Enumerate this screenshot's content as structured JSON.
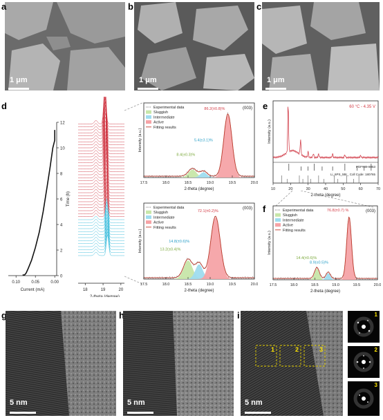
{
  "panel_labels": {
    "a": "a",
    "b": "b",
    "c": "c",
    "d": "d",
    "e": "e",
    "f": "f",
    "g": "g",
    "h": "h",
    "i": "i"
  },
  "scale_bars": {
    "sem": "1 μm",
    "tem": "5 nm"
  },
  "fft_labels": [
    "1",
    "2",
    "3"
  ],
  "box_labels": [
    "1",
    "2",
    "3"
  ],
  "colors": {
    "sluggish": "#c7e6a9",
    "intermediate": "#9fdcef",
    "active": "#f6a3a6",
    "fit": "#c0392b",
    "exp": "#7a7a7a",
    "cyan": "#29b6d8",
    "red": "#cc2936"
  },
  "chart_data": [
    {
      "id": "d-left",
      "type": "line",
      "xlabel": "Current (mA)",
      "ylabel": "Time (h)",
      "xticks": [
        "0.10",
        "0.05",
        "0.00"
      ],
      "yticks": [
        "0",
        "2",
        "4",
        "6",
        "8",
        "10",
        "12"
      ],
      "xlim": [
        0.12,
        -0.005
      ],
      "ylim": [
        0,
        12
      ],
      "x": [
        0.0,
        0.0,
        0.005,
        0.012,
        0.02,
        0.03,
        0.04,
        0.05,
        0.06,
        0.068,
        0.074,
        0.078,
        0.08,
        0.082,
        0.083
      ],
      "y": [
        11.4,
        10.6,
        10.0,
        8.5,
        6.9,
        5.0,
        3.4,
        2.2,
        1.2,
        0.6,
        0.2,
        0.05,
        0.05,
        0.05,
        0.05
      ]
    },
    {
      "id": "d-mid",
      "type": "line",
      "xlabel": "2-theta (degree)",
      "xticks": [
        "18",
        "19",
        "20"
      ],
      "xlim": [
        17.6,
        20.2
      ],
      "n_cyan": 13,
      "n_red": 32
    },
    {
      "id": "d-top",
      "type": "area",
      "xlabel": "2-theta (degree)",
      "ylabel": "Intensity (a.u.)",
      "xticks": [
        "17.5",
        "18.0",
        "18.5",
        "19.0",
        "19.5",
        "20.0"
      ],
      "xlim": [
        17.5,
        20.0
      ],
      "legend": [
        "Experimental data",
        "Sluggish",
        "Intermediate",
        "Active",
        "Fitting results"
      ],
      "tag": "(003)",
      "series": [
        {
          "name": "Sluggish",
          "center": 18.6,
          "width": 0.13,
          "height": 0.12
        },
        {
          "name": "Intermediate",
          "center": 18.85,
          "width": 0.11,
          "height": 0.08
        },
        {
          "name": "Active",
          "center": 19.4,
          "width": 0.13,
          "height": 0.95
        }
      ],
      "annotations": [
        {
          "text": "86.2(±0.8)%",
          "x": 19.1,
          "y": 1.03,
          "color": "red"
        },
        {
          "text": "5.4(±3.1)%",
          "x": 18.85,
          "y": 0.55,
          "color": "cyan"
        },
        {
          "text": "8.4(±0.3)%",
          "x": 18.45,
          "y": 0.33,
          "color": "green"
        }
      ]
    },
    {
      "id": "d-bottom",
      "type": "area",
      "xlabel": "2-theta (degree)",
      "ylabel": "Intensity (a.u.)",
      "xticks": [
        "17.5",
        "18.0",
        "18.5",
        "19.0",
        "19.5",
        "20.0"
      ],
      "xlim": [
        17.5,
        20.0
      ],
      "legend": [
        "Experimental data",
        "Sluggish",
        "Intermediate",
        "Active",
        "Fitting results"
      ],
      "tag": "(003)",
      "series": [
        {
          "name": "Sluggish",
          "center": 18.5,
          "width": 0.14,
          "height": 0.28
        },
        {
          "name": "Intermediate",
          "center": 18.75,
          "width": 0.12,
          "height": 0.22
        },
        {
          "name": "Active",
          "center": 19.12,
          "width": 0.15,
          "height": 0.92
        }
      ],
      "annotations": [
        {
          "text": "72.1(±0.2)%",
          "x": 18.95,
          "y": 1.0,
          "color": "red"
        },
        {
          "text": "14.8(±0.6)%",
          "x": 18.3,
          "y": 0.55,
          "color": "cyan"
        },
        {
          "text": "13.2(±0.4)%",
          "x": 18.1,
          "y": 0.43,
          "color": "green"
        }
      ]
    },
    {
      "id": "e",
      "type": "line",
      "title": "60 °C - 4.35 V",
      "xlabel": "2-theta (degree)",
      "ylabel": "Intensity (a.u.)",
      "xticks": [
        "10",
        "20",
        "30",
        "40",
        "50",
        "60",
        "70"
      ],
      "xlim": [
        10,
        70
      ],
      "ref1": "PDF#89-8053",
      "ref2": "Li_6PS_5Br_ Coll Code: 180765"
    },
    {
      "id": "f",
      "type": "area",
      "xlabel": "2-theta (degree)",
      "ylabel": "Intensity (a.u.)",
      "xticks": [
        "17.5",
        "18.0",
        "18.5",
        "19.0",
        "19.5",
        "20.0"
      ],
      "xlim": [
        17.5,
        20.0
      ],
      "legend": [
        "Experimental data",
        "Sluggish",
        "Intermediate",
        "Active",
        "Fitting results"
      ],
      "tag": "(003)",
      "series": [
        {
          "name": "Sluggish",
          "center": 18.55,
          "width": 0.08,
          "height": 0.17
        },
        {
          "name": "Intermediate",
          "center": 18.82,
          "width": 0.07,
          "height": 0.1
        },
        {
          "name": "Active",
          "center": 19.32,
          "width": 0.08,
          "height": 0.95
        }
      ],
      "annotations": [
        {
          "text": "76.8(±0.7) %",
          "x": 19.05,
          "y": 1.05,
          "color": "red"
        },
        {
          "text": "14.4(±0.6)%",
          "x": 18.3,
          "y": 0.32,
          "color": "green"
        },
        {
          "text": "8.9(±0.5)%",
          "x": 18.6,
          "y": 0.25,
          "color": "cyan"
        }
      ]
    }
  ]
}
